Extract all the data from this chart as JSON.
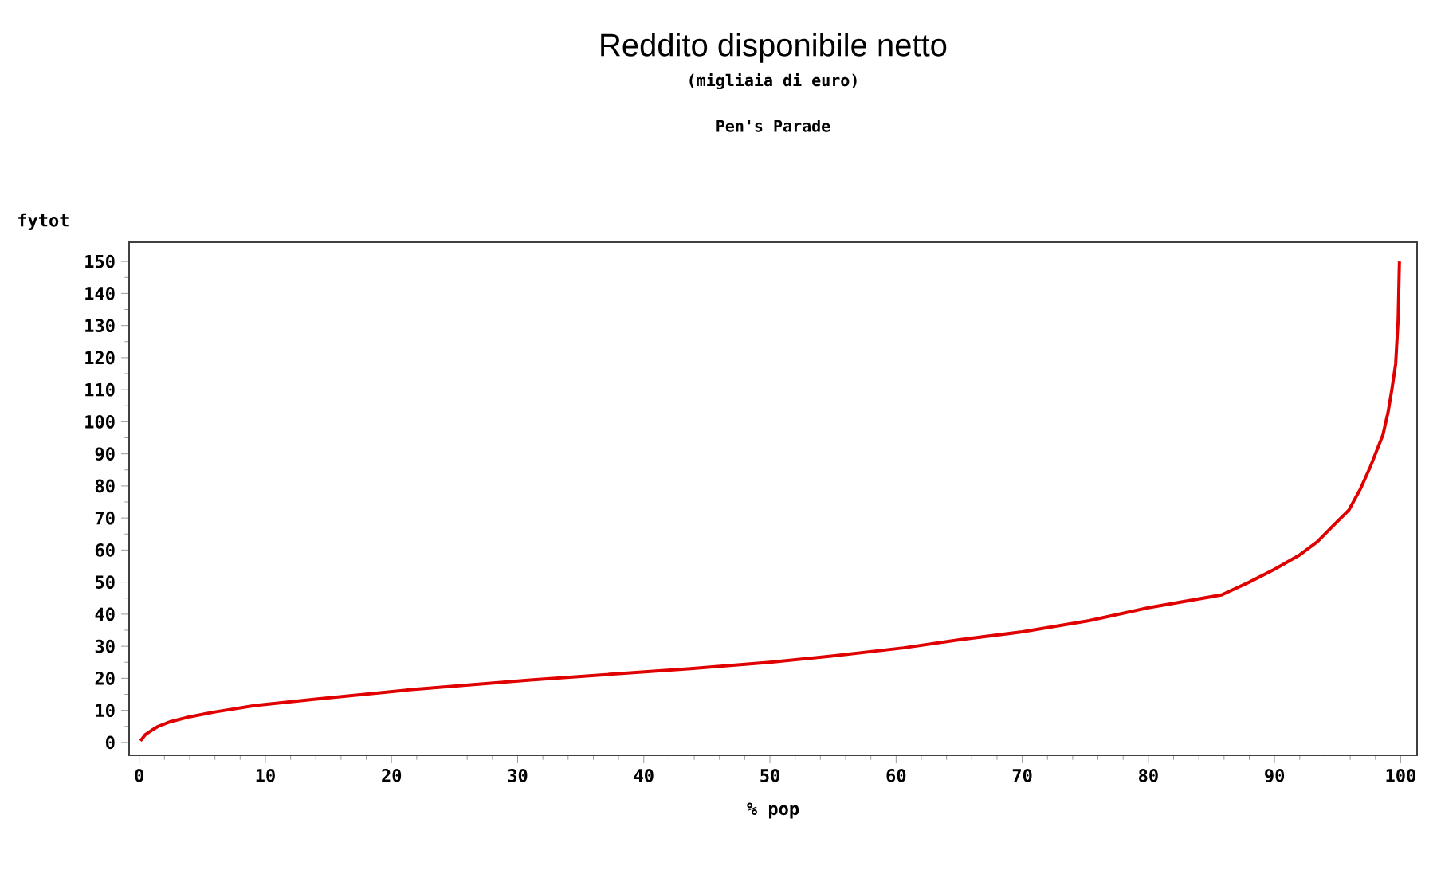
{
  "chart_data": {
    "type": "line",
    "title": "Reddito disponibile netto",
    "subtitle": "(migliaia di euro)",
    "annotations": [
      "Pen's Parade"
    ],
    "xlabel": "% pop",
    "ylabel": "fytot",
    "x": [
      0.1,
      0.5,
      1,
      1.5,
      2.5,
      4,
      6,
      9.2,
      14,
      21.4,
      31,
      43.7,
      50,
      55,
      60.6,
      65,
      70,
      75.3,
      80,
      85.8,
      88,
      90,
      92,
      93.4,
      94.5,
      95.9,
      96.8,
      97.6,
      98.2,
      98.6,
      99,
      99.3,
      99.6,
      99.8,
      99.9
    ],
    "values": [
      0.5,
      2.5,
      3.8,
      5,
      6.5,
      8,
      9.5,
      11.5,
      13.5,
      16.4,
      19.5,
      23,
      25,
      27,
      29.5,
      32,
      34.5,
      38,
      42,
      46,
      50,
      54,
      58.5,
      62.6,
      67,
      72.5,
      79,
      86,
      92,
      96,
      103,
      110,
      118,
      132,
      150
    ],
    "color": "#e00000",
    "xlim": [
      -0.8,
      101.3
    ],
    "xticks": [
      0,
      10,
      20,
      30,
      40,
      50,
      60,
      70,
      80,
      90,
      100
    ],
    "ylim": [
      -4,
      156
    ],
    "yticks": [
      0,
      10,
      20,
      30,
      40,
      50,
      60,
      70,
      80,
      90,
      100,
      110,
      120,
      130,
      140,
      150
    ],
    "marker": "none",
    "line_style": "solid"
  }
}
